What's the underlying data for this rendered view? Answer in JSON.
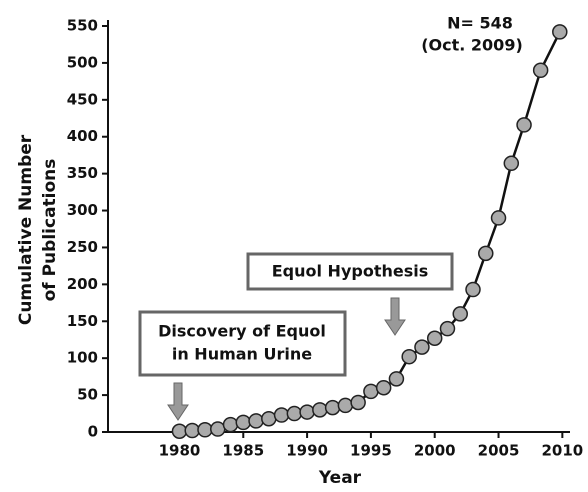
{
  "chart_data": {
    "type": "line",
    "xlabel": "Year",
    "ylabel": [
      "Cumulative Number",
      "of Publications"
    ],
    "x": [
      1980,
      1981,
      1982,
      1983,
      1984,
      1985,
      1986,
      1987,
      1988,
      1989,
      1990,
      1991,
      1992,
      1993,
      1994,
      1995,
      1996,
      1997,
      1998,
      1999,
      2000,
      2001,
      2002,
      2003,
      2004,
      2005,
      2006,
      2007,
      2008.3,
      2009.8
    ],
    "series": [
      {
        "color": "#aaaaaa",
        "values": [
          1,
          2,
          3,
          4,
          10,
          13,
          15,
          18,
          23,
          25,
          27,
          30,
          33,
          36,
          40,
          55,
          60,
          72,
          102,
          115,
          127,
          140,
          160,
          193,
          242,
          290,
          364,
          416,
          490,
          542
        ]
      }
    ],
    "xlim": [
      1974.4,
      2010.6
    ],
    "xticks": [
      1980,
      1985,
      1990,
      1995,
      2000,
      2005,
      2010
    ],
    "ylim": [
      0,
      550
    ],
    "yticks": [
      0,
      50,
      100,
      150,
      200,
      250,
      300,
      350,
      400,
      450,
      500,
      550
    ],
    "annotations": {
      "total": "N= 548",
      "date": "(Oct. 2009)",
      "hypothesis": "Equol Hypothesis",
      "discovery": [
        "Discovery of Equol",
        "in Human Urine"
      ]
    }
  }
}
